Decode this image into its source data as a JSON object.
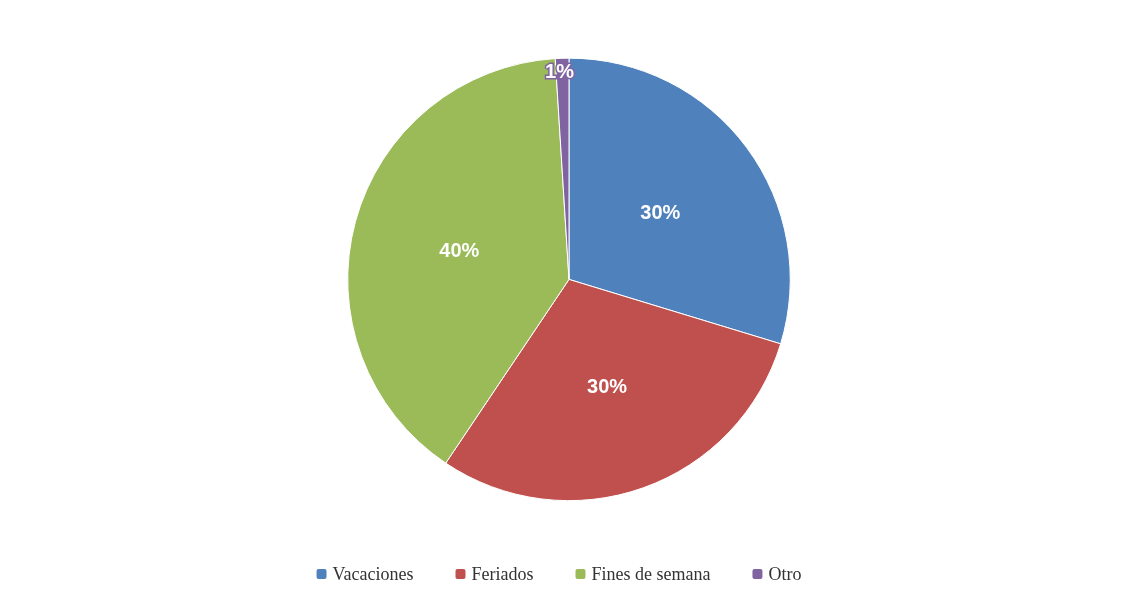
{
  "chart_data": {
    "type": "pie",
    "categories": [
      "Vacaciones",
      "Feriados",
      "Fines de semana",
      "Otro"
    ],
    "values": [
      30,
      30,
      40,
      1
    ],
    "colors": [
      "#4f81bd",
      "#c0504d",
      "#9bbb59",
      "#8064a2"
    ],
    "value_labels": [
      "30%",
      "30%",
      "40%",
      "1%"
    ],
    "legend": "bottom"
  }
}
